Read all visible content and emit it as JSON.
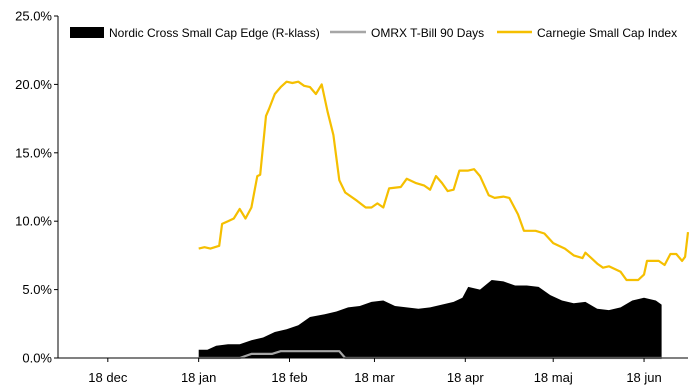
{
  "chart_data": {
    "type": "line",
    "xlabel": "",
    "ylabel": "",
    "x_ticks": [
      "18 dec",
      "18 jan",
      "18 feb",
      "18 mar",
      "18 apr",
      "18 maj",
      "18 jun"
    ],
    "y_ticks": [
      "0.0%",
      "5.0%",
      "10.0%",
      "15.0%",
      "20.0%",
      "25.0%"
    ],
    "ylim": [
      0,
      25
    ],
    "y_unit": "%",
    "grid": false,
    "legend_position": "top",
    "series": [
      {
        "name": "Nordic Cross Small Cap Edge (R-klass)",
        "style": "area",
        "color": "#000000",
        "points": [
          [
            "18 jan",
            0.6
          ],
          [
            "21 jan",
            0.6
          ],
          [
            "24 jan",
            0.9
          ],
          [
            "28 jan",
            1.0
          ],
          [
            "1 feb",
            1.0
          ],
          [
            "5 feb",
            1.3
          ],
          [
            "9 feb",
            1.5
          ],
          [
            "13 feb",
            1.9
          ],
          [
            "17 feb",
            2.1
          ],
          [
            "21 feb",
            2.4
          ],
          [
            "25 feb",
            3.0
          ],
          [
            "1 mar",
            3.2
          ],
          [
            "5 mar",
            3.4
          ],
          [
            "9 mar",
            3.7
          ],
          [
            "13 mar",
            3.8
          ],
          [
            "17 mar",
            4.1
          ],
          [
            "21 mar",
            4.2
          ],
          [
            "25 mar",
            3.8
          ],
          [
            "29 mar",
            3.7
          ],
          [
            "2 apr",
            3.6
          ],
          [
            "6 apr",
            3.7
          ],
          [
            "10 apr",
            3.9
          ],
          [
            "14 apr",
            4.1
          ],
          [
            "17 apr",
            4.4
          ],
          [
            "19 apr",
            5.2
          ],
          [
            "23 apr",
            5.0
          ],
          [
            "27 apr",
            5.7
          ],
          [
            "1 maj",
            5.6
          ],
          [
            "5 maj",
            5.3
          ],
          [
            "9 maj",
            5.3
          ],
          [
            "13 maj",
            5.2
          ],
          [
            "17 maj",
            4.6
          ],
          [
            "21 maj",
            4.2
          ],
          [
            "25 maj",
            4.0
          ],
          [
            "29 maj",
            4.1
          ],
          [
            "2 jun",
            3.6
          ],
          [
            "6 jun",
            3.5
          ],
          [
            "10 jun",
            3.7
          ],
          [
            "14 jun",
            4.2
          ],
          [
            "18 jun",
            4.4
          ],
          [
            "22 jun",
            4.2
          ],
          [
            "24 jun",
            3.9
          ]
        ]
      },
      {
        "name": "OMRX T-Bill 90 Days",
        "style": "line",
        "color": "#a6a6a6",
        "points": [
          [
            "18 jan",
            0.0
          ],
          [
            "1 feb",
            0.0
          ],
          [
            "5 feb",
            0.3
          ],
          [
            "12 feb",
            0.3
          ],
          [
            "15 feb",
            0.5
          ],
          [
            "6 mar",
            0.5
          ],
          [
            "8 mar",
            0.0
          ],
          [
            "24 jun",
            0.0
          ]
        ]
      },
      {
        "name": "Carnegie Small Cap Index",
        "style": "line",
        "color": "#f5bf00",
        "points": [
          [
            "18 jan",
            8.0
          ],
          [
            "20 jan",
            8.1
          ],
          [
            "22 jan",
            8.0
          ],
          [
            "25 jan",
            8.2
          ],
          [
            "26 jan",
            9.8
          ],
          [
            "28 jan",
            10.0
          ],
          [
            "30 jan",
            10.2
          ],
          [
            "1 feb",
            10.9
          ],
          [
            "3 feb",
            10.2
          ],
          [
            "5 feb",
            11.0
          ],
          [
            "7 feb",
            13.3
          ],
          [
            "8 feb",
            13.4
          ],
          [
            "10 feb",
            17.7
          ],
          [
            "11 feb",
            18.2
          ],
          [
            "13 feb",
            19.3
          ],
          [
            "15 feb",
            19.8
          ],
          [
            "17 feb",
            20.2
          ],
          [
            "19 feb",
            20.1
          ],
          [
            "21 feb",
            20.2
          ],
          [
            "23 feb",
            19.9
          ],
          [
            "25 feb",
            19.8
          ],
          [
            "27 feb",
            19.3
          ],
          [
            "29 feb",
            20.0
          ],
          [
            "2 mar",
            18.0
          ],
          [
            "4 mar",
            16.3
          ],
          [
            "6 mar",
            13.0
          ],
          [
            "8 mar",
            12.1
          ],
          [
            "12 mar",
            11.5
          ],
          [
            "15 mar",
            11.0
          ],
          [
            "17 mar",
            11.0
          ],
          [
            "19 mar",
            11.3
          ],
          [
            "21 mar",
            11.0
          ],
          [
            "23 mar",
            12.4
          ],
          [
            "27 mar",
            12.5
          ],
          [
            "29 mar",
            13.1
          ],
          [
            "1 apr",
            12.8
          ],
          [
            "4 apr",
            12.6
          ],
          [
            "6 apr",
            12.3
          ],
          [
            "8 apr",
            13.3
          ],
          [
            "10 apr",
            12.8
          ],
          [
            "12 apr",
            12.2
          ],
          [
            "14 apr",
            12.3
          ],
          [
            "16 apr",
            13.7
          ],
          [
            "19 apr",
            13.7
          ],
          [
            "21 apr",
            13.8
          ],
          [
            "23 apr",
            13.3
          ],
          [
            "26 apr",
            11.9
          ],
          [
            "28 apr",
            11.7
          ],
          [
            "1 maj",
            11.8
          ],
          [
            "3 maj",
            11.7
          ],
          [
            "6 maj",
            10.5
          ],
          [
            "8 maj",
            9.3
          ],
          [
            "12 maj",
            9.3
          ],
          [
            "15 maj",
            9.1
          ],
          [
            "18 maj",
            8.4
          ],
          [
            "22 maj",
            8.0
          ],
          [
            "25 maj",
            7.5
          ],
          [
            "28 maj",
            7.3
          ],
          [
            "29 maj",
            7.7
          ],
          [
            "31 maj",
            7.3
          ],
          [
            "2 jun",
            6.9
          ],
          [
            "4 jun",
            6.6
          ],
          [
            "6 jun",
            6.7
          ],
          [
            "10 jun",
            6.3
          ],
          [
            "12 jun",
            5.7
          ],
          [
            "16 jun",
            5.7
          ],
          [
            "18 jun",
            6.1
          ],
          [
            "19 jun",
            7.1
          ],
          [
            "23 jun",
            7.1
          ],
          [
            "25 jun",
            6.8
          ],
          [
            "27 jun",
            7.6
          ],
          [
            "29 jun",
            7.6
          ],
          [
            "1 jul",
            7.1
          ],
          [
            "2 jul",
            7.4
          ],
          [
            "3 jul",
            9.2
          ]
        ]
      }
    ]
  }
}
